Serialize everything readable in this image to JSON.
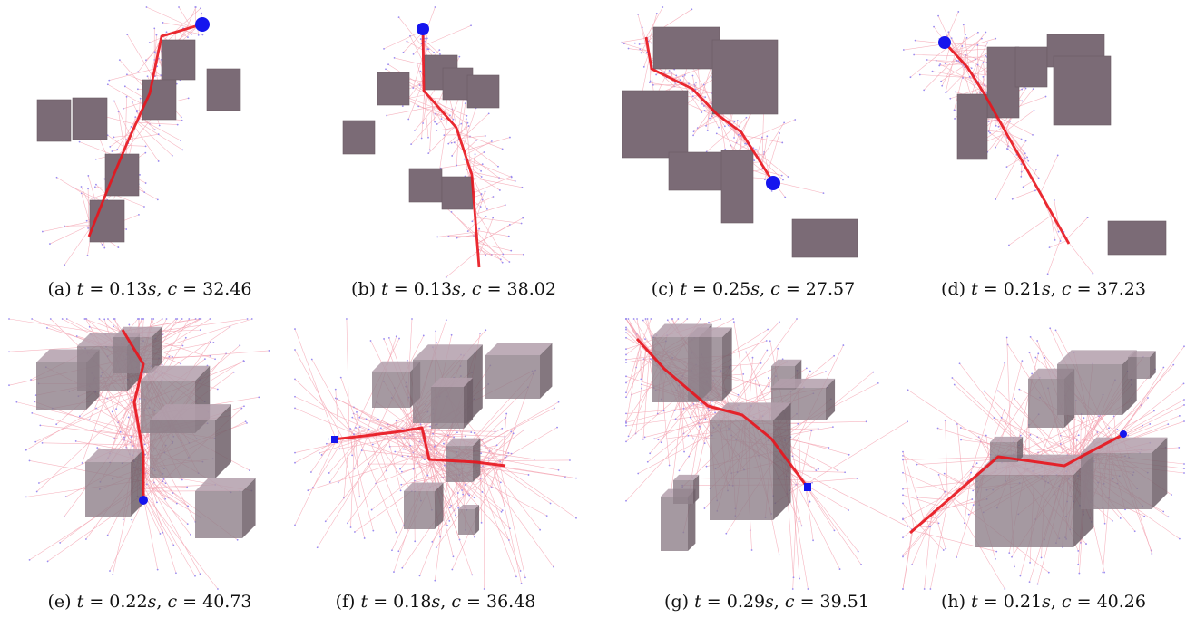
{
  "figure": {
    "panels": [
      {
        "label": "(a)",
        "t_prefix": "t",
        "t_value": "= 0.13",
        "t_unit": "s",
        "c_prefix": "c",
        "c_value": "= 32.46",
        "mode": "2d"
      },
      {
        "label": "(b)",
        "t_prefix": "t",
        "t_value": "= 0.13",
        "t_unit": "s",
        "c_prefix": "c",
        "c_value": "= 38.02",
        "mode": "2d"
      },
      {
        "label": "(c)",
        "t_prefix": "t",
        "t_value": "= 0.25",
        "t_unit": "s",
        "c_prefix": "c",
        "c_value": "= 27.57",
        "mode": "2d"
      },
      {
        "label": "(d)",
        "t_prefix": "t",
        "t_value": "= 0.21",
        "t_unit": "s",
        "c_prefix": "c",
        "c_value": "= 37.23",
        "mode": "2d"
      },
      {
        "label": "(e)",
        "t_prefix": "t",
        "t_value": "= 0.22",
        "t_unit": "s",
        "c_prefix": "c",
        "c_value": "= 40.73",
        "mode": "3d"
      },
      {
        "label": "(f)",
        "t_prefix": "t",
        "t_value": "= 0.18",
        "t_unit": "s",
        "c_prefix": "c",
        "c_value": "= 36.48",
        "mode": "3d"
      },
      {
        "label": "(g)",
        "t_prefix": "t",
        "t_value": "= 0.29",
        "t_unit": "s",
        "c_prefix": "c",
        "c_value": "= 39.51",
        "mode": "3d"
      },
      {
        "label": "(h)",
        "t_prefix": "t",
        "t_value": "= 0.21",
        "t_unit": "s",
        "c_prefix": "c",
        "c_value": "= 40.26",
        "mode": "3d"
      }
    ],
    "colors": {
      "obstacle_2d": "#7b6b76",
      "obstacle_3d_front": "#8e7f89",
      "obstacle_3d_side": "#6e5f69",
      "obstacle_3d_top": "#b39fab",
      "tree_edge": "#f4a3b0",
      "tree_node": "#9a8cf0",
      "path": "#e8141c",
      "goal": "#1515ee"
    }
  }
}
